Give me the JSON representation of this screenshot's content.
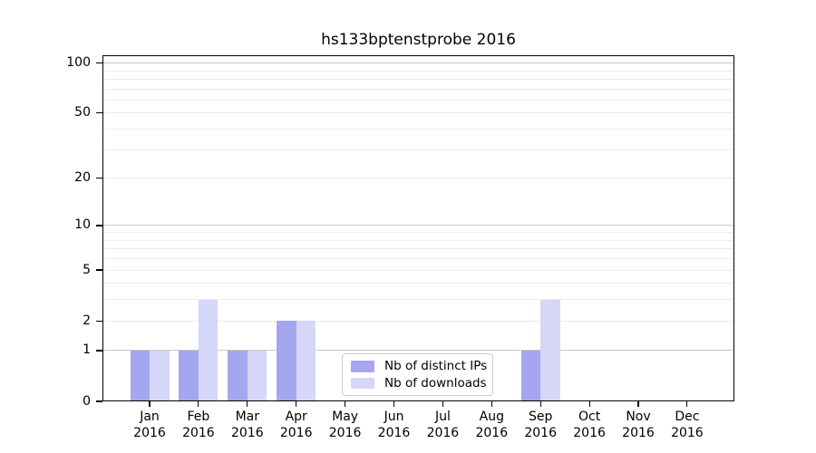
{
  "chart_data": {
    "type": "bar",
    "title": "hs133bptenstprobe 2016",
    "xlabel": "",
    "ylabel": "",
    "scale": "log1p",
    "ylim": [
      0,
      112
    ],
    "categories": [
      "Jan",
      "Feb",
      "Mar",
      "Apr",
      "May",
      "Jun",
      "Jul",
      "Aug",
      "Sep",
      "Oct",
      "Nov",
      "Dec"
    ],
    "category_year": "2016",
    "series": [
      {
        "name": "Nb of distinct IPs",
        "color": "#a6a6f0",
        "values": [
          1,
          1,
          1,
          2,
          0,
          0,
          0,
          0,
          1,
          0,
          0,
          0
        ]
      },
      {
        "name": "Nb of downloads",
        "color": "#d6d6f8",
        "values": [
          1,
          3,
          1,
          2,
          0,
          0,
          0,
          0,
          3,
          0,
          0,
          0
        ]
      }
    ],
    "yticks": [
      0,
      1,
      2,
      5,
      10,
      20,
      50,
      100
    ],
    "gridlines": {
      "major": [
        1,
        10,
        100
      ],
      "minor": [
        2,
        3,
        4,
        5,
        6,
        7,
        8,
        9,
        20,
        30,
        40,
        50,
        60,
        70,
        80,
        90
      ]
    },
    "legend": {
      "position": "lower center",
      "entries": [
        "Nb of distinct IPs",
        "Nb of downloads"
      ]
    },
    "colors": {
      "grid_major": "#c8c8c8",
      "grid_minor": "#ececec",
      "spine": "#000000",
      "text": "#000000",
      "background": "#ffffff"
    }
  }
}
